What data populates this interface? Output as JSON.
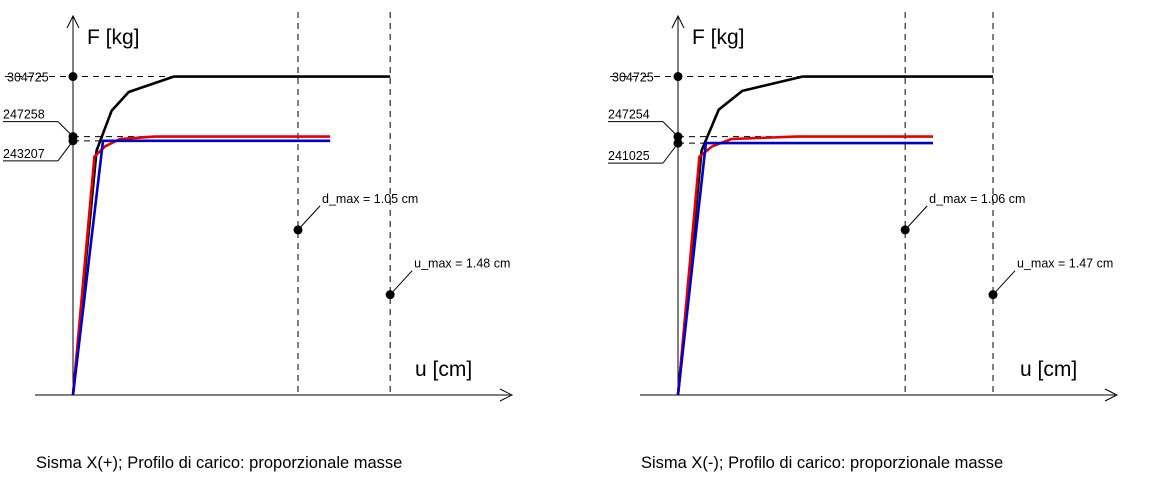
{
  "chart_data": [
    {
      "type": "line",
      "caption": "Sisma X(+); Profilo di carico: proporzionale masse",
      "ylabel": "F [kg]",
      "xlabel": "u [cm]",
      "ylim": [
        0,
        380000
      ],
      "xlim": [
        0,
        1.65
      ],
      "y_ticks": [
        {
          "label": "304725",
          "value": 304725
        },
        {
          "label": "247258",
          "value": 247258
        },
        {
          "label": "243207",
          "value": 243207
        }
      ],
      "series": [
        {
          "color": "#000000",
          "points": [
            [
              0,
              0
            ],
            [
              0.11,
              234000
            ],
            [
              0.18,
              272000
            ],
            [
              0.26,
              290000
            ],
            [
              0.47,
              304725
            ],
            [
              1.48,
              304725
            ]
          ]
        },
        {
          "color": "#e60000",
          "points": [
            [
              0,
              0
            ],
            [
              0.1,
              228000
            ],
            [
              0.15,
              238000
            ],
            [
              0.22,
              245000
            ],
            [
              0.38,
              247258
            ],
            [
              1.2,
              247258
            ]
          ]
        },
        {
          "color": "#0000cc",
          "points": [
            [
              0,
              0
            ],
            [
              0.14,
              243207
            ],
            [
              1.2,
              243207
            ]
          ]
        }
      ],
      "markers": [
        {
          "label": "d_max = 1.05 cm",
          "x": 1.05,
          "y": 158000
        },
        {
          "label": "u_max = 1.48 cm",
          "x": 1.48,
          "y": 96000
        }
      ]
    },
    {
      "type": "line",
      "caption": "Sisma X(-); Profilo di carico: proporzionale masse",
      "ylabel": "F [kg]",
      "xlabel": "u [cm]",
      "ylim": [
        0,
        380000
      ],
      "xlim": [
        0,
        1.65
      ],
      "y_ticks": [
        {
          "label": "304725",
          "value": 304725
        },
        {
          "label": "247254",
          "value": 247254
        },
        {
          "label": "241025",
          "value": 241025
        }
      ],
      "series": [
        {
          "color": "#000000",
          "points": [
            [
              0,
              0
            ],
            [
              0.11,
              234000
            ],
            [
              0.19,
              273000
            ],
            [
              0.3,
              291000
            ],
            [
              0.58,
              304725
            ],
            [
              1.47,
              304725
            ]
          ]
        },
        {
          "color": "#e60000",
          "points": [
            [
              0,
              0
            ],
            [
              0.1,
              228000
            ],
            [
              0.16,
              238000
            ],
            [
              0.25,
              245000
            ],
            [
              0.55,
              247254
            ],
            [
              1.19,
              247254
            ]
          ]
        },
        {
          "color": "#0000cc",
          "points": [
            [
              0,
              0
            ],
            [
              0.13,
              241025
            ],
            [
              1.19,
              241025
            ]
          ]
        }
      ],
      "markers": [
        {
          "label": "d_max = 1.06 cm",
          "x": 1.06,
          "y": 158000
        },
        {
          "label": "u_max = 1.47 cm",
          "x": 1.47,
          "y": 96000
        }
      ]
    }
  ]
}
